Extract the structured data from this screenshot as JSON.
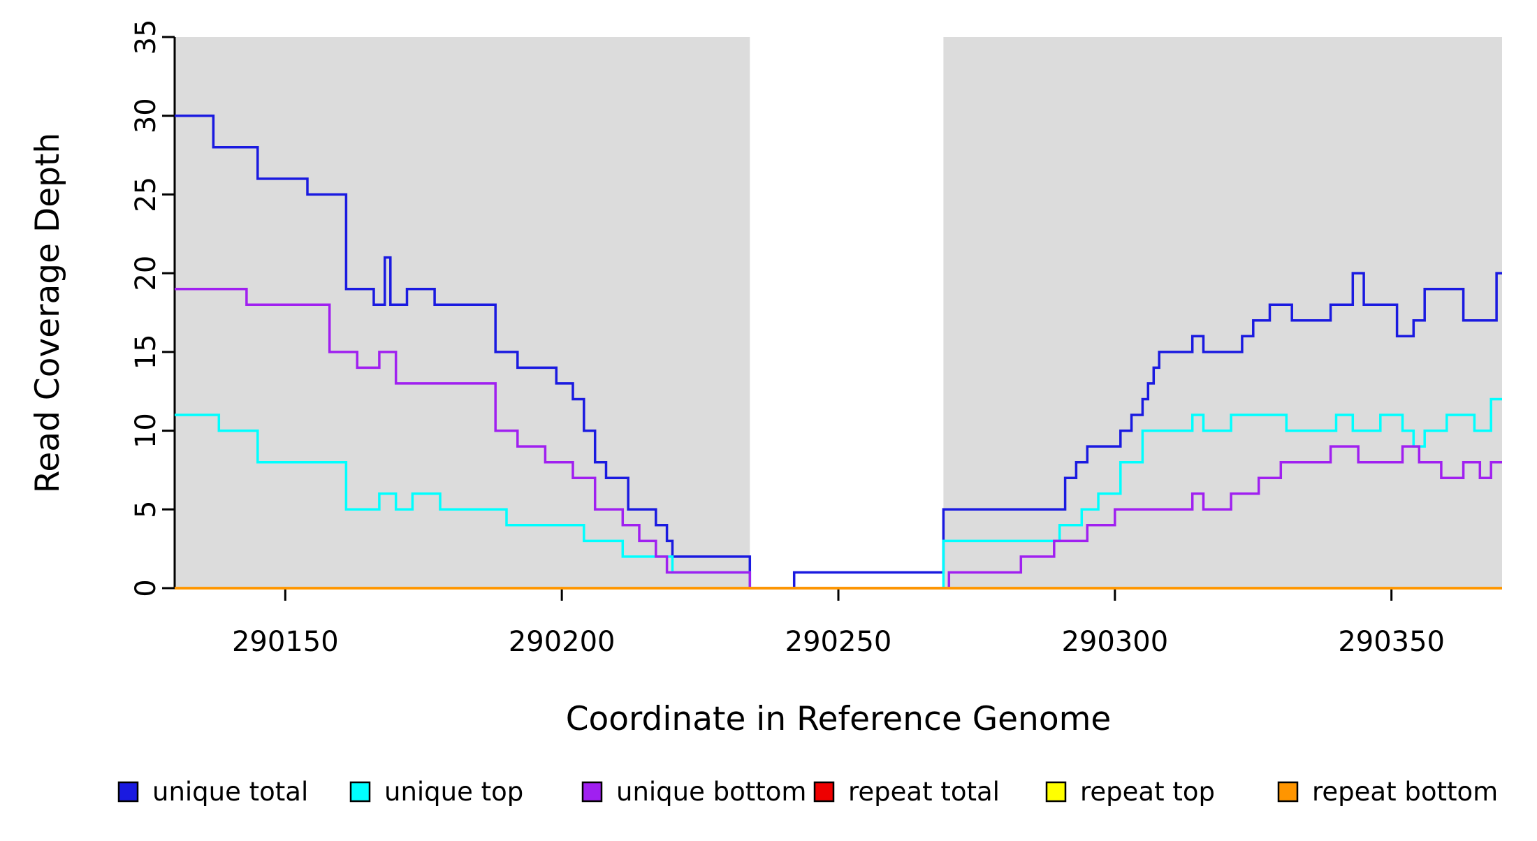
{
  "chart_data": {
    "type": "line",
    "subtype": "step",
    "title": "",
    "xlabel": "Coordinate in Reference Genome",
    "ylabel": "Read Coverage Depth",
    "xlim": [
      290130,
      290370
    ],
    "ylim": [
      0,
      35
    ],
    "x_ticks": [
      290150,
      290200,
      290250,
      290300,
      290350
    ],
    "y_ticks": [
      0,
      5,
      10,
      15,
      20,
      25,
      30,
      35
    ],
    "grid": false,
    "legend_position": "bottom",
    "plot_background": "#ffffff",
    "shaded_region_color": "#dcdcdc",
    "shaded_regions": [
      {
        "name": "left-gray-region",
        "from": 290130,
        "to": 290234
      },
      {
        "name": "right-gray-region",
        "from": 290269,
        "to": 290370
      }
    ],
    "series": [
      {
        "name": "unique total",
        "color": "#1a1ae0",
        "points": [
          [
            290130,
            30
          ],
          [
            290137,
            28
          ],
          [
            290145,
            26
          ],
          [
            290154,
            25
          ],
          [
            290161,
            19
          ],
          [
            290166,
            18
          ],
          [
            290168,
            21
          ],
          [
            290169,
            18
          ],
          [
            290172,
            19
          ],
          [
            290177,
            18
          ],
          [
            290188,
            15
          ],
          [
            290192,
            14
          ],
          [
            290199,
            13
          ],
          [
            290202,
            12
          ],
          [
            290204,
            10
          ],
          [
            290206,
            8
          ],
          [
            290208,
            7
          ],
          [
            290212,
            5
          ],
          [
            290217,
            4
          ],
          [
            290219,
            3
          ],
          [
            290220,
            2
          ],
          [
            290234,
            0
          ],
          [
            290242,
            1
          ],
          [
            290269,
            5
          ],
          [
            290291,
            7
          ],
          [
            290293,
            8
          ],
          [
            290295,
            9
          ],
          [
            290301,
            10
          ],
          [
            290303,
            11
          ],
          [
            290305,
            12
          ],
          [
            290306,
            13
          ],
          [
            290307,
            14
          ],
          [
            290308,
            15
          ],
          [
            290314,
            16
          ],
          [
            290316,
            15
          ],
          [
            290323,
            16
          ],
          [
            290325,
            17
          ],
          [
            290328,
            18
          ],
          [
            290332,
            17
          ],
          [
            290339,
            18
          ],
          [
            290343,
            20
          ],
          [
            290345,
            18
          ],
          [
            290351,
            16
          ],
          [
            290354,
            17
          ],
          [
            290356,
            19
          ],
          [
            290363,
            17
          ],
          [
            290369,
            20
          ]
        ]
      },
      {
        "name": "unique top",
        "color": "#00ffff",
        "points": [
          [
            290130,
            11
          ],
          [
            290138,
            10
          ],
          [
            290145,
            8
          ],
          [
            290161,
            5
          ],
          [
            290167,
            6
          ],
          [
            290170,
            5
          ],
          [
            290173,
            6
          ],
          [
            290178,
            5
          ],
          [
            290190,
            4
          ],
          [
            290204,
            3
          ],
          [
            290211,
            2
          ],
          [
            290220,
            1
          ],
          [
            290234,
            0
          ],
          [
            290269,
            3
          ],
          [
            290290,
            4
          ],
          [
            290294,
            5
          ],
          [
            290297,
            6
          ],
          [
            290301,
            8
          ],
          [
            290305,
            10
          ],
          [
            290314,
            11
          ],
          [
            290316,
            10
          ],
          [
            290321,
            11
          ],
          [
            290331,
            10
          ],
          [
            290340,
            11
          ],
          [
            290343,
            10
          ],
          [
            290348,
            11
          ],
          [
            290352,
            10
          ],
          [
            290354,
            9
          ],
          [
            290356,
            10
          ],
          [
            290360,
            11
          ],
          [
            290365,
            10
          ],
          [
            290368,
            12
          ]
        ]
      },
      {
        "name": "unique bottom",
        "color": "#a020f0",
        "points": [
          [
            290130,
            19
          ],
          [
            290143,
            18
          ],
          [
            290158,
            15
          ],
          [
            290163,
            14
          ],
          [
            290167,
            15
          ],
          [
            290170,
            13
          ],
          [
            290188,
            10
          ],
          [
            290192,
            9
          ],
          [
            290197,
            8
          ],
          [
            290202,
            7
          ],
          [
            290206,
            5
          ],
          [
            290211,
            4
          ],
          [
            290214,
            3
          ],
          [
            290217,
            2
          ],
          [
            290219,
            1
          ],
          [
            290234,
            0
          ],
          [
            290270,
            1
          ],
          [
            290283,
            2
          ],
          [
            290289,
            3
          ],
          [
            290295,
            4
          ],
          [
            290300,
            5
          ],
          [
            290314,
            6
          ],
          [
            290316,
            5
          ],
          [
            290321,
            6
          ],
          [
            290326,
            7
          ],
          [
            290330,
            8
          ],
          [
            290339,
            9
          ],
          [
            290344,
            8
          ],
          [
            290352,
            9
          ],
          [
            290355,
            8
          ],
          [
            290359,
            7
          ],
          [
            290363,
            8
          ],
          [
            290366,
            7
          ],
          [
            290368,
            8
          ]
        ]
      },
      {
        "name": "repeat total",
        "color": "#ee0000",
        "points": [
          [
            290130,
            0
          ]
        ]
      },
      {
        "name": "repeat top",
        "color": "#ffff00",
        "points": [
          [
            290130,
            0
          ]
        ]
      },
      {
        "name": "repeat bottom",
        "color": "#ff9500",
        "points": [
          [
            290130,
            0
          ]
        ]
      }
    ]
  }
}
